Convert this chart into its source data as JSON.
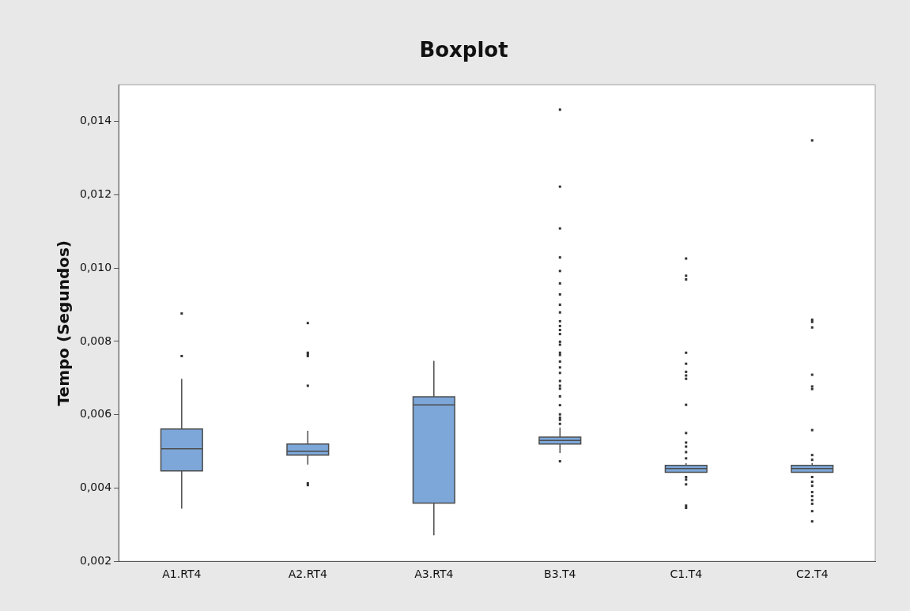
{
  "chart_data": {
    "type": "box",
    "title": "Boxplot",
    "ylabel": "Tempo (Segundos)",
    "categories": [
      "A1.RT4",
      "A2.RT4",
      "A3.RT4",
      "B3.T4",
      "C1.T4",
      "C2.T4"
    ],
    "color": "#7da7d9",
    "boxes": [
      {
        "low": 0.00344,
        "q1": 0.00447,
        "median": 0.00507,
        "q3": 0.00561,
        "high": 0.00698,
        "outliers": [
          0.00876,
          0.0076
        ]
      },
      {
        "low": 0.00464,
        "q1": 0.0049,
        "median": 0.005,
        "q3": 0.0052,
        "high": 0.00556,
        "outliers": [
          0.0085,
          0.00769,
          0.00765,
          0.0076,
          0.00679,
          0.00413,
          0.00408
        ]
      },
      {
        "low": 0.00271,
        "q1": 0.00359,
        "median": 0.00627,
        "q3": 0.00649,
        "high": 0.00747
      },
      {
        "low": 0.00496,
        "q1": 0.0052,
        "median": 0.0053,
        "q3": 0.00539,
        "high": 0.00565,
        "outliers": [
          0.01432,
          0.01222,
          0.01108,
          0.01029,
          0.00992,
          0.00958,
          0.00928,
          0.009,
          0.00879,
          0.00855,
          0.00842,
          0.00831,
          0.0082,
          0.00799,
          0.00791,
          0.00769,
          0.00763,
          0.00745,
          0.00729,
          0.00714,
          0.00692,
          0.00679,
          0.00671,
          0.0065,
          0.00626,
          0.00601,
          0.00592,
          0.00586,
          0.00575,
          0.00473
        ]
      },
      {
        "low": 0.00443,
        "q1": 0.00443,
        "median": 0.00453,
        "q3": 0.00462,
        "high": 0.00468,
        "outliers": [
          0.01026,
          0.00979,
          0.00969,
          0.00769,
          0.00739,
          0.00717,
          0.00707,
          0.00698,
          0.00627,
          0.0055,
          0.00524,
          0.00513,
          0.00498,
          0.00481,
          0.0043,
          0.00423,
          0.0041,
          0.00352,
          0.00346
        ]
      },
      {
        "low": 0.00443,
        "q1": 0.00443,
        "median": 0.00453,
        "q3": 0.00462,
        "high": 0.00468,
        "outliers": [
          0.01348,
          0.00859,
          0.00853,
          0.00838,
          0.00709,
          0.00677,
          0.0067,
          0.00558,
          0.0049,
          0.00477,
          0.0043,
          0.00417,
          0.00406,
          0.00389,
          0.00378,
          0.00367,
          0.00357,
          0.00337,
          0.00309
        ]
      }
    ],
    "ylim": [
      0.002,
      0.015
    ],
    "yticks": [
      {
        "value": 0.002,
        "label": "0,002"
      },
      {
        "value": 0.004,
        "label": "0,004"
      },
      {
        "value": 0.006,
        "label": "0,006"
      },
      {
        "value": 0.008,
        "label": "0,008"
      },
      {
        "value": 0.01,
        "label": "0,010"
      },
      {
        "value": 0.012,
        "label": "0,012"
      },
      {
        "value": 0.014,
        "label": "0,014"
      }
    ],
    "grid": false,
    "legend": false
  }
}
